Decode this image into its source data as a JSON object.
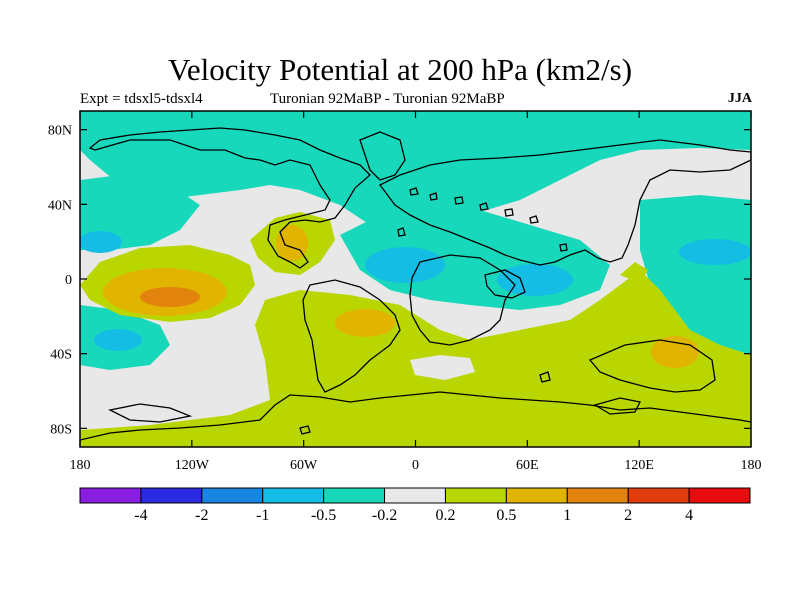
{
  "title": "Velocity Potential at 200 hPa (km2/s)",
  "subtitle_left": "Expt = tdsxl5-tdsxl4",
  "subtitle_center": "Turonian  92MaBP - Turonian  92MaBP",
  "subtitle_right": "JJA",
  "y_ticks": [
    "80N",
    "40N",
    "0",
    "40S",
    "80S"
  ],
  "x_ticks": [
    "180",
    "120W",
    "60W",
    "0",
    "60E",
    "120E",
    "180"
  ],
  "colorbar": {
    "colors": [
      "#8a1ee0",
      "#2a2ae0",
      "#1a85e0",
      "#13bde4",
      "#18d8bb",
      "#e8e8e8",
      "#bad600",
      "#e1b400",
      "#e1830c",
      "#e03c0c",
      "#e80c0c"
    ],
    "labels": [
      "-4",
      "-2",
      "-1",
      "-0.5",
      "-0.2",
      "0.2",
      "0.5",
      "1",
      "2",
      "4"
    ]
  },
  "palette": {
    "strong_neg": "#13bde4",
    "neg": "#18d8bb",
    "neutral": "#e8e8e8",
    "weak_pos": "#bad600",
    "pos": "#e1b400",
    "strong_pos": "#e1830c"
  }
}
